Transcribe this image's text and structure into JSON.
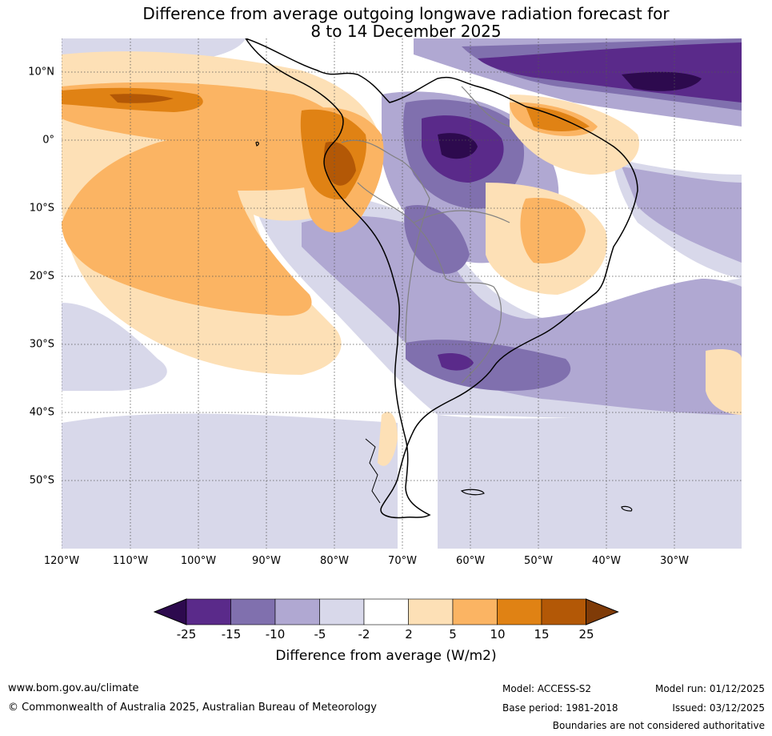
{
  "title": {
    "line1": "Difference from average outgoing longwave radiation forecast for",
    "line2": "8 to 14 December 2025"
  },
  "map": {
    "region": "South America",
    "lon_labels": [
      "120°W",
      "110°W",
      "100°W",
      "90°W",
      "80°W",
      "70°W",
      "60°W",
      "50°W",
      "40°W",
      "30°W"
    ],
    "lat_labels": [
      "10°N",
      "0°",
      "10°S",
      "20°S",
      "30°S",
      "40°S",
      "50°S"
    ],
    "gridlines": "dotted"
  },
  "legend": {
    "ticks": [
      "-25",
      "-15",
      "-10",
      "-5",
      "-2",
      "2",
      "5",
      "10",
      "15",
      "25"
    ],
    "title": "Difference from average (W/m2)",
    "colors": [
      "#2d0a4e",
      "#5a2a8a",
      "#8070ae",
      "#b0a8d2",
      "#d8d8ea",
      "#ffffff",
      "#fde0b6",
      "#fbb463",
      "#e08214",
      "#b35806",
      "#7f3b08"
    ]
  },
  "footer": {
    "website": "www.bom.gov.au/climate",
    "copyright": "© Commonwealth of Australia 2025, Australian Bureau of Meteorology",
    "model": "Model: ACCESS-S2",
    "base_period": "Base period: 1981-2018",
    "model_run": "Model run: 01/12/2025",
    "issued": "Issued: 03/12/2025",
    "disclaimer": "Boundaries are not considered authoritative"
  }
}
